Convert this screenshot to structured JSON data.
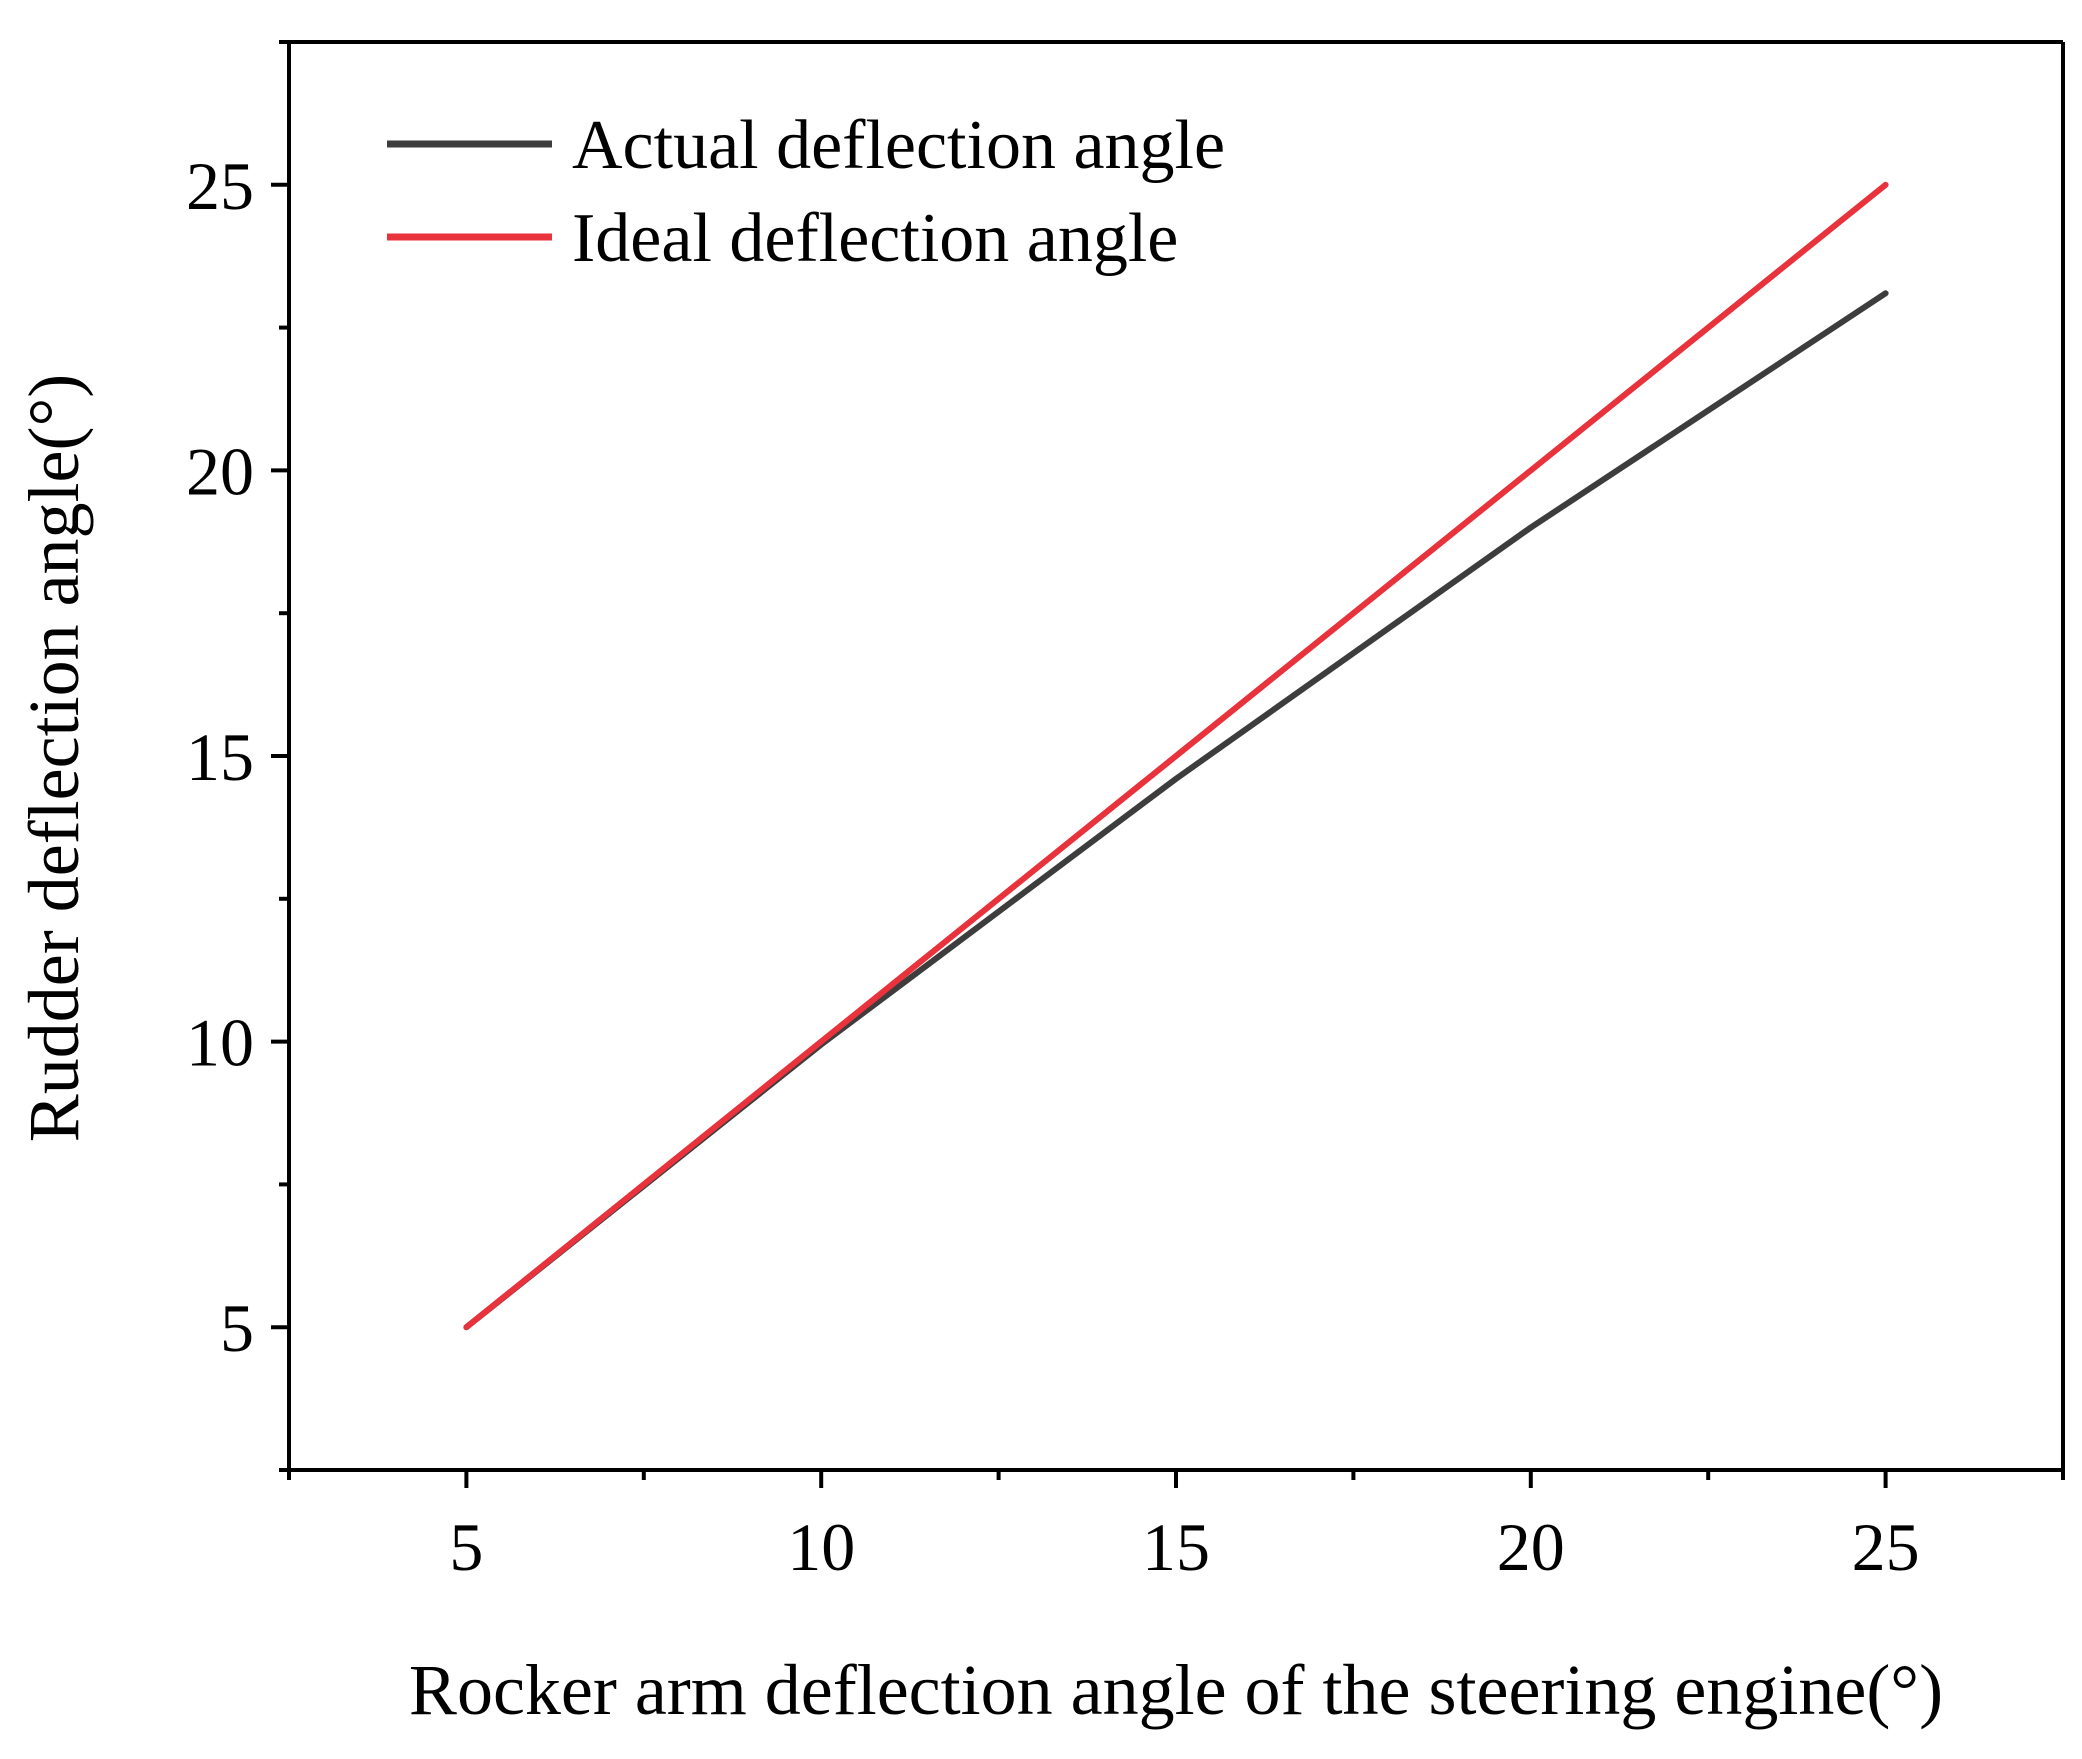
{
  "chart_data": {
    "type": "line",
    "title": "",
    "xlabel": "Rocker arm deflection angle of the steering engine(°)",
    "ylabel": "Rudder deflection angle(°)",
    "xlim": [
      2.5,
      27.5
    ],
    "ylim": [
      2.5,
      27.5
    ],
    "xticks": [
      5,
      10,
      15,
      20,
      25
    ],
    "yticks": [
      5,
      10,
      15,
      20,
      25
    ],
    "xtick_labels": [
      "5",
      "10",
      "15",
      "20",
      "25"
    ],
    "ytick_labels": [
      "5",
      "10",
      "15",
      "20",
      "25"
    ],
    "x_minor_ticks": [
      2.5,
      7.5,
      12.5,
      17.5,
      22.5,
      27.5
    ],
    "y_minor_ticks": [
      2.5,
      7.5,
      12.5,
      17.5,
      22.5,
      27.5
    ],
    "legend_position": "top-left",
    "grid": false,
    "series": [
      {
        "name": "Actual deflection angle",
        "color": "#3d3d3d",
        "x": [
          5,
          10,
          15,
          20,
          25
        ],
        "y": [
          5,
          9.95,
          14.6,
          19.0,
          23.1
        ]
      },
      {
        "name": "Ideal deflection angle",
        "color": "#e8323c",
        "x": [
          5,
          10,
          15,
          20,
          25
        ],
        "y": [
          5,
          10,
          15,
          20,
          25
        ]
      }
    ]
  }
}
